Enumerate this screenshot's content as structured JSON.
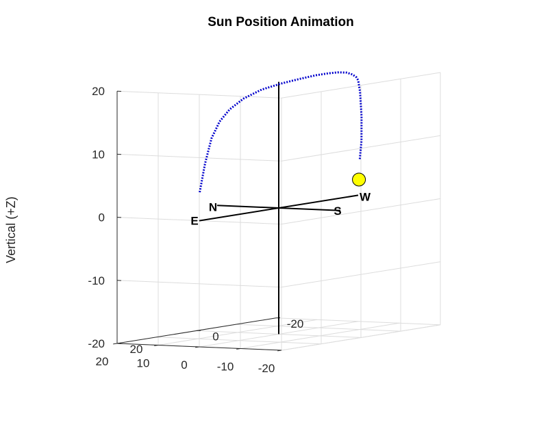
{
  "chart_data": {
    "type": "line3d",
    "title": "Sun Position Animation",
    "zlabel": "Vertical (+Z)",
    "xlim": [
      -20,
      20
    ],
    "ylim": [
      -20,
      20
    ],
    "zlim": [
      -20,
      20
    ],
    "x_ticks": [
      20,
      10,
      0,
      -10,
      -20
    ],
    "y_ticks": [
      -20,
      0,
      20
    ],
    "z_ticks": [
      20,
      10,
      0,
      -10,
      -20
    ],
    "grid": true,
    "axes_lines": {
      "east_west": {
        "from": [
          0,
          20,
          0
        ],
        "to": [
          0,
          -20,
          0
        ]
      },
      "north_south": {
        "from": [
          15,
          0,
          0
        ],
        "to": [
          -15,
          0,
          0
        ]
      },
      "vertical": {
        "from": [
          0,
          0,
          -20
        ],
        "to": [
          0,
          0,
          20
        ]
      }
    },
    "compass_labels": [
      {
        "text": "E",
        "position": [
          0,
          20,
          0
        ]
      },
      {
        "text": "W",
        "position": [
          0,
          -20,
          0
        ]
      },
      {
        "text": "N",
        "position": [
          15,
          0,
          0
        ]
      },
      {
        "text": "S",
        "position": [
          -15,
          0,
          0
        ]
      }
    ],
    "sun_path": {
      "color": "#0000cc",
      "style": "dotted",
      "points": [
        [
          0,
          19.9,
          4.5
        ],
        [
          -1,
          19.6,
          9
        ],
        [
          -2,
          19.0,
          13
        ],
        [
          -3,
          18.0,
          15.6
        ],
        [
          -4,
          16.5,
          17.4
        ],
        [
          -5,
          14.0,
          18.9
        ],
        [
          -6,
          10.5,
          20.0
        ],
        [
          -7,
          6.5,
          20.6
        ],
        [
          -7.4,
          2.5,
          20.9
        ],
        [
          -7.6,
          -1.5,
          21.1
        ],
        [
          -7.7,
          -4.5,
          21.1
        ],
        [
          -7.6,
          -7.0,
          21.0
        ],
        [
          -7.3,
          -9.5,
          20.7
        ],
        [
          -6.8,
          -11.5,
          20.2
        ],
        [
          -6.3,
          -13.0,
          19.6
        ],
        [
          -5.8,
          -14.0,
          19.0
        ],
        [
          -5.0,
          -15.3,
          17.0
        ],
        [
          -4.2,
          -16.5,
          13.0
        ],
        [
          -3.5,
          -17.2,
          9.0
        ],
        [
          -2.8,
          -17.5,
          6.0
        ]
      ]
    },
    "sun_marker": {
      "position": [
        -2.5,
        -17.6,
        2.8
      ],
      "color": "#ffff00"
    }
  }
}
